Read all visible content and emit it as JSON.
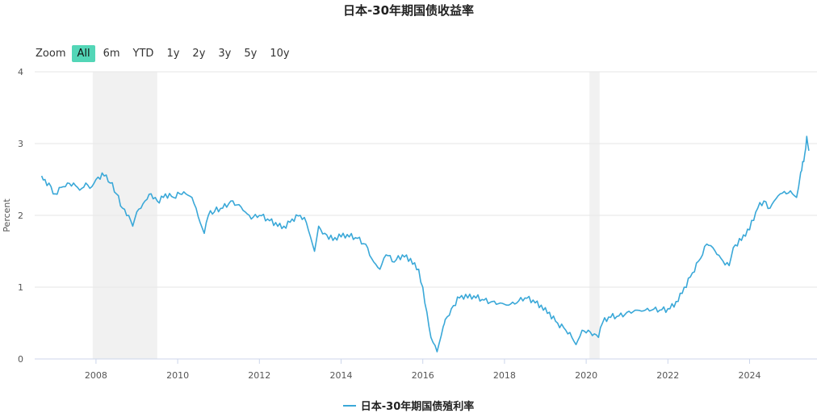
{
  "zoom": {
    "label": "Zoom",
    "buttons": [
      "All",
      "6m",
      "YTD",
      "1y",
      "2y",
      "3y",
      "5y",
      "10y"
    ],
    "active": "All"
  },
  "chart_data": {
    "type": "line",
    "title": "日本-30年期国债收益率",
    "ylabel": "Percent",
    "xlim": [
      2006.5,
      2025.65
    ],
    "ylim": [
      0,
      4
    ],
    "yticks": [
      0,
      1,
      2,
      3,
      4
    ],
    "xticks": [
      2008,
      2010,
      2012,
      2014,
      2016,
      2018,
      2020,
      2022,
      2024
    ],
    "grid": true,
    "legend_position": "bottom",
    "recession_bands": [
      [
        2007.92,
        2009.5
      ],
      [
        2020.08,
        2020.33
      ]
    ],
    "series": [
      {
        "name": "日本-30年期国债殖利率",
        "color": "#3aa8d8",
        "x": [
          2006.67,
          2006.75,
          2006.9,
          2007.0,
          2007.2,
          2007.45,
          2007.6,
          2007.75,
          2007.9,
          2008.0,
          2008.2,
          2008.35,
          2008.5,
          2008.65,
          2008.8,
          2008.9,
          2009.0,
          2009.1,
          2009.2,
          2009.35,
          2009.5,
          2009.7,
          2009.9,
          2010.05,
          2010.2,
          2010.35,
          2010.45,
          2010.55,
          2010.65,
          2010.75,
          2010.9,
          2011.1,
          2011.3,
          2011.5,
          2011.65,
          2011.8,
          2012.0,
          2012.2,
          2012.4,
          2012.6,
          2012.8,
          2013.0,
          2013.15,
          2013.25,
          2013.35,
          2013.45,
          2013.6,
          2013.8,
          2014.0,
          2014.2,
          2014.4,
          2014.6,
          2014.8,
          2014.95,
          2015.1,
          2015.3,
          2015.5,
          2015.7,
          2015.9,
          2016.0,
          2016.1,
          2016.2,
          2016.35,
          2016.5,
          2016.55,
          2016.7,
          2016.9,
          2017.1,
          2017.3,
          2017.5,
          2017.7,
          2017.9,
          2018.1,
          2018.3,
          2018.5,
          2018.7,
          2018.9,
          2019.1,
          2019.3,
          2019.5,
          2019.65,
          2019.75,
          2019.9,
          2020.05,
          2020.2,
          2020.3,
          2020.4,
          2020.6,
          2020.8,
          2021.0,
          2021.2,
          2021.4,
          2021.6,
          2021.8,
          2022.0,
          2022.2,
          2022.4,
          2022.6,
          2022.8,
          2022.95,
          2023.1,
          2023.3,
          2023.5,
          2023.6,
          2023.8,
          2024.0,
          2024.2,
          2024.35,
          2024.5,
          2024.6,
          2024.75,
          2024.9,
          2025.05,
          2025.15,
          2025.25,
          2025.3,
          2025.35,
          2025.4,
          2025.45
        ],
        "values": [
          2.55,
          2.5,
          2.4,
          2.3,
          2.4,
          2.45,
          2.35,
          2.45,
          2.4,
          2.5,
          2.55,
          2.45,
          2.3,
          2.1,
          2.0,
          1.85,
          2.05,
          2.1,
          2.2,
          2.3,
          2.2,
          2.3,
          2.25,
          2.3,
          2.3,
          2.25,
          2.1,
          1.9,
          1.75,
          2.0,
          2.05,
          2.1,
          2.2,
          2.15,
          2.05,
          1.95,
          2.0,
          1.95,
          1.9,
          1.85,
          1.95,
          2.0,
          1.9,
          1.7,
          1.5,
          1.85,
          1.75,
          1.65,
          1.7,
          1.7,
          1.68,
          1.6,
          1.35,
          1.25,
          1.45,
          1.35,
          1.45,
          1.4,
          1.25,
          1.0,
          0.65,
          0.3,
          0.1,
          0.45,
          0.55,
          0.7,
          0.85,
          0.85,
          0.85,
          0.82,
          0.8,
          0.78,
          0.75,
          0.78,
          0.85,
          0.82,
          0.75,
          0.65,
          0.5,
          0.4,
          0.3,
          0.2,
          0.4,
          0.4,
          0.35,
          0.3,
          0.5,
          0.58,
          0.6,
          0.65,
          0.68,
          0.67,
          0.68,
          0.68,
          0.7,
          0.8,
          1.0,
          1.2,
          1.4,
          1.6,
          1.55,
          1.4,
          1.3,
          1.55,
          1.65,
          1.8,
          2.1,
          2.2,
          2.1,
          2.2,
          2.3,
          2.3,
          2.3,
          2.25,
          2.6,
          2.75,
          2.85,
          3.1,
          2.9
        ]
      }
    ]
  }
}
